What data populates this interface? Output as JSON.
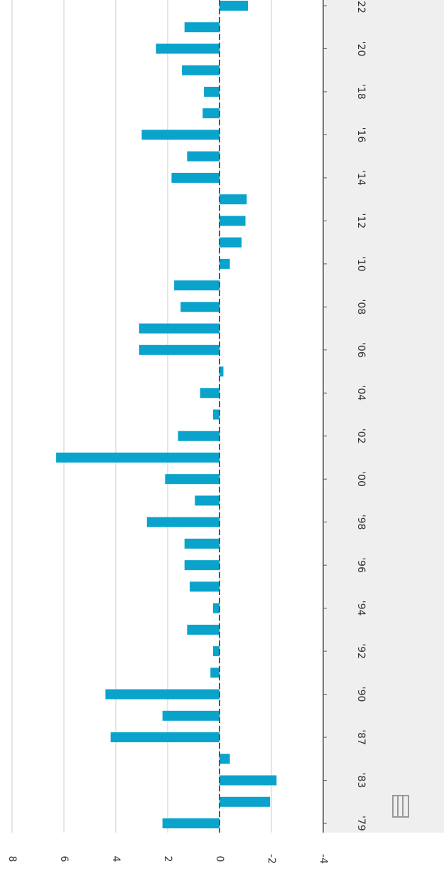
{
  "chart_data": {
    "type": "bar",
    "orientation": "rotated",
    "categories": [
      "'79",
      null,
      "'83",
      null,
      "'87",
      null,
      "'90",
      null,
      "'92",
      null,
      "'94",
      null,
      "'96",
      null,
      "'98",
      null,
      "'00",
      null,
      "'02",
      null,
      "'04",
      null,
      "'06",
      null,
      "'08",
      null,
      "'10",
      null,
      "'12",
      null,
      "'14",
      null,
      "'16",
      null,
      "'18",
      null,
      "'20",
      null,
      "'22"
    ],
    "values": [
      2.2,
      -1.95,
      -2.2,
      -0.4,
      4.2,
      2.2,
      4.4,
      0.35,
      0.25,
      1.25,
      0.25,
      1.15,
      1.35,
      1.35,
      2.8,
      0.95,
      2.1,
      6.3,
      1.6,
      0.25,
      0.75,
      -0.15,
      3.1,
      3.1,
      1.5,
      1.75,
      -0.4,
      -0.85,
      -1.0,
      -1.05,
      1.85,
      1.25,
      3.0,
      0.65,
      0.6,
      1.45,
      2.45,
      1.35,
      -1.1
    ],
    "color": "#0aa3cc",
    "ylim": [
      -4,
      8
    ],
    "yticks": [
      8,
      6,
      4,
      2,
      0,
      -2,
      -4
    ],
    "grid": true
  }
}
